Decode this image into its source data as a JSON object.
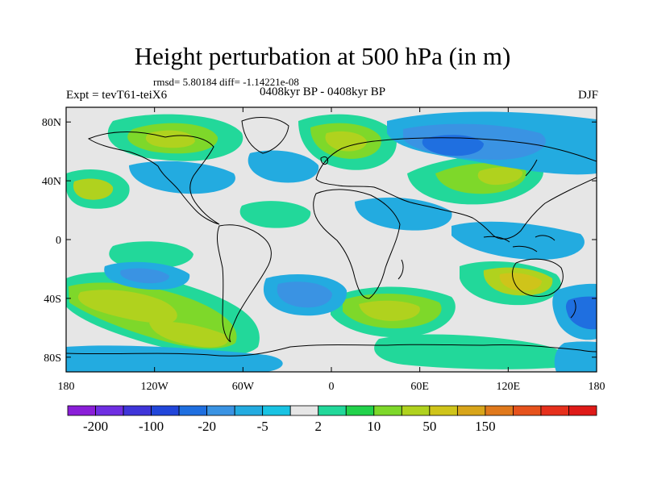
{
  "title": "Height perturbation at 500 hPa (in m)",
  "stats_line": "rmsd= 5.80184 diff= -1.14221e-08",
  "experiment": "Expt = tevT61-teiX6",
  "period": "0408kyr BP - 0408kyr BP",
  "season": "DJF",
  "map": {
    "lat_ticks": [
      {
        "value": 80,
        "label": "80N"
      },
      {
        "value": 40,
        "label": "40N"
      },
      {
        "value": 0,
        "label": "0"
      },
      {
        "value": -40,
        "label": "40S"
      },
      {
        "value": -80,
        "label": "80S"
      }
    ],
    "lon_ticks": [
      {
        "value": -180,
        "label": "180"
      },
      {
        "value": -120,
        "label": "120W"
      },
      {
        "value": -60,
        "label": "60W"
      },
      {
        "value": 0,
        "label": "0"
      },
      {
        "value": 60,
        "label": "60E"
      },
      {
        "value": 120,
        "label": "120E"
      },
      {
        "value": 180,
        "label": "180"
      }
    ],
    "background_color": "#e6e6e6"
  },
  "colorbar": {
    "colors": [
      "#8a1ed8",
      "#6f2ee2",
      "#3f35d9",
      "#2146da",
      "#1f6fe0",
      "#3a93e3",
      "#23abe0",
      "#19c3e3",
      "#e6e6e6",
      "#22d89a",
      "#22d24b",
      "#7ed82a",
      "#b0d21e",
      "#cfc41a",
      "#d8a51a",
      "#e0791c",
      "#e6521c",
      "#e6301c",
      "#df1a18"
    ],
    "tick_labels": [
      {
        "label": "-200",
        "index": 1
      },
      {
        "label": "-100",
        "index": 3
      },
      {
        "label": "-20",
        "index": 5
      },
      {
        "label": "-5",
        "index": 7
      },
      {
        "label": "2",
        "index": 9
      },
      {
        "label": "10",
        "index": 11
      },
      {
        "label": "50",
        "index": 13
      },
      {
        "label": "150",
        "index": 15
      }
    ]
  }
}
